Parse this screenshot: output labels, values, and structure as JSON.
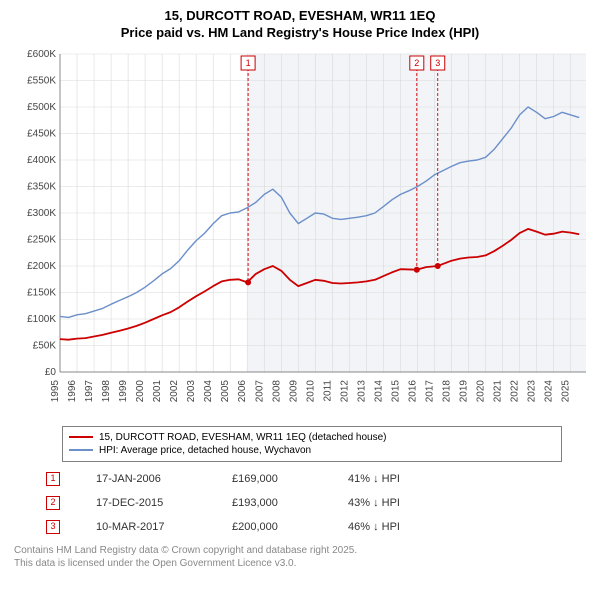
{
  "title_line1": "15, DURCOTT ROAD, EVESHAM, WR11 1EQ",
  "title_line2": "Price paid vs. HM Land Registry's House Price Index (HPI)",
  "chart": {
    "type": "line",
    "background_color": "#ffffff",
    "shaded_start_year": 2006,
    "shaded_color": "#f2f4f8",
    "x": {
      "min": 1995,
      "max": 2025.9,
      "ticks": [
        1995,
        1996,
        1997,
        1998,
        1999,
        2000,
        2001,
        2002,
        2003,
        2004,
        2005,
        2006,
        2007,
        2008,
        2009,
        2010,
        2011,
        2012,
        2013,
        2014,
        2015,
        2016,
        2017,
        2018,
        2019,
        2020,
        2021,
        2022,
        2023,
        2024,
        2025
      ],
      "tick_fontsize": 10,
      "grid_color": "#d9d9d9"
    },
    "y": {
      "min": 0,
      "max": 600000,
      "ticks": [
        0,
        50000,
        100000,
        150000,
        200000,
        250000,
        300000,
        350000,
        400000,
        450000,
        500000,
        550000,
        600000
      ],
      "tick_labels": [
        "£0",
        "£50K",
        "£100K",
        "£150K",
        "£200K",
        "£250K",
        "£300K",
        "£350K",
        "£400K",
        "£450K",
        "£500K",
        "£550K",
        "£600K"
      ],
      "tick_fontsize": 10,
      "grid_color": "#d9d9d9"
    },
    "series": [
      {
        "name": "hpi",
        "label": "HPI: Average price, detached house, Wychavon",
        "color": "#6b8fc9",
        "line_width": 1.4,
        "points": [
          [
            1995.0,
            105000
          ],
          [
            1995.5,
            103000
          ],
          [
            1996.0,
            108000
          ],
          [
            1996.5,
            110000
          ],
          [
            1997.0,
            115000
          ],
          [
            1997.5,
            120000
          ],
          [
            1998.0,
            128000
          ],
          [
            1998.5,
            135000
          ],
          [
            1999.0,
            142000
          ],
          [
            1999.5,
            150000
          ],
          [
            2000.0,
            160000
          ],
          [
            2000.5,
            172000
          ],
          [
            2001.0,
            185000
          ],
          [
            2001.5,
            195000
          ],
          [
            2002.0,
            210000
          ],
          [
            2002.5,
            230000
          ],
          [
            2003.0,
            248000
          ],
          [
            2003.5,
            262000
          ],
          [
            2004.0,
            280000
          ],
          [
            2004.5,
            295000
          ],
          [
            2005.0,
            300000
          ],
          [
            2005.5,
            302000
          ],
          [
            2006.0,
            310000
          ],
          [
            2006.5,
            320000
          ],
          [
            2007.0,
            335000
          ],
          [
            2007.5,
            345000
          ],
          [
            2008.0,
            330000
          ],
          [
            2008.5,
            300000
          ],
          [
            2009.0,
            280000
          ],
          [
            2009.5,
            290000
          ],
          [
            2010.0,
            300000
          ],
          [
            2010.5,
            298000
          ],
          [
            2011.0,
            290000
          ],
          [
            2011.5,
            288000
          ],
          [
            2012.0,
            290000
          ],
          [
            2012.5,
            292000
          ],
          [
            2013.0,
            295000
          ],
          [
            2013.5,
            300000
          ],
          [
            2014.0,
            312000
          ],
          [
            2014.5,
            325000
          ],
          [
            2015.0,
            335000
          ],
          [
            2015.5,
            342000
          ],
          [
            2016.0,
            350000
          ],
          [
            2016.5,
            360000
          ],
          [
            2017.0,
            372000
          ],
          [
            2017.5,
            380000
          ],
          [
            2018.0,
            388000
          ],
          [
            2018.5,
            395000
          ],
          [
            2019.0,
            398000
          ],
          [
            2019.5,
            400000
          ],
          [
            2020.0,
            405000
          ],
          [
            2020.5,
            420000
          ],
          [
            2021.0,
            440000
          ],
          [
            2021.5,
            460000
          ],
          [
            2022.0,
            485000
          ],
          [
            2022.5,
            500000
          ],
          [
            2023.0,
            490000
          ],
          [
            2023.5,
            478000
          ],
          [
            2024.0,
            482000
          ],
          [
            2024.5,
            490000
          ],
          [
            2025.0,
            485000
          ],
          [
            2025.5,
            480000
          ]
        ]
      },
      {
        "name": "price_paid",
        "label": "15, DURCOTT ROAD, EVESHAM, WR11 1EQ (detached house)",
        "color": "#cc0000",
        "line_width": 1.8,
        "points": [
          [
            1995.0,
            62000
          ],
          [
            1995.5,
            61000
          ],
          [
            1996.0,
            63000
          ],
          [
            1996.5,
            64000
          ],
          [
            1997.0,
            67000
          ],
          [
            1997.5,
            70000
          ],
          [
            1998.0,
            74000
          ],
          [
            1998.5,
            78000
          ],
          [
            1999.0,
            82000
          ],
          [
            1999.5,
            87000
          ],
          [
            2000.0,
            93000
          ],
          [
            2000.5,
            100000
          ],
          [
            2001.0,
            107000
          ],
          [
            2001.5,
            113000
          ],
          [
            2002.0,
            122000
          ],
          [
            2002.5,
            133000
          ],
          [
            2003.0,
            143000
          ],
          [
            2003.5,
            152000
          ],
          [
            2004.0,
            162000
          ],
          [
            2004.5,
            171000
          ],
          [
            2005.0,
            174000
          ],
          [
            2005.5,
            175000
          ],
          [
            2006.0,
            169000
          ],
          [
            2006.5,
            185000
          ],
          [
            2007.0,
            194000
          ],
          [
            2007.5,
            200000
          ],
          [
            2008.0,
            191000
          ],
          [
            2008.5,
            174000
          ],
          [
            2009.0,
            162000
          ],
          [
            2009.5,
            168000
          ],
          [
            2010.0,
            174000
          ],
          [
            2010.5,
            172000
          ],
          [
            2011.0,
            168000
          ],
          [
            2011.5,
            167000
          ],
          [
            2012.0,
            168000
          ],
          [
            2012.5,
            169000
          ],
          [
            2013.0,
            171000
          ],
          [
            2013.5,
            174000
          ],
          [
            2014.0,
            181000
          ],
          [
            2014.5,
            188000
          ],
          [
            2015.0,
            194000
          ],
          [
            2015.96,
            193000
          ],
          [
            2016.5,
            198000
          ],
          [
            2017.19,
            200000
          ],
          [
            2017.5,
            204000
          ],
          [
            2018.0,
            210000
          ],
          [
            2018.5,
            214000
          ],
          [
            2019.0,
            216000
          ],
          [
            2019.5,
            217000
          ],
          [
            2020.0,
            220000
          ],
          [
            2020.5,
            228000
          ],
          [
            2021.0,
            238000
          ],
          [
            2021.5,
            249000
          ],
          [
            2022.0,
            262000
          ],
          [
            2022.5,
            270000
          ],
          [
            2023.0,
            265000
          ],
          [
            2023.5,
            259000
          ],
          [
            2024.0,
            261000
          ],
          [
            2024.5,
            265000
          ],
          [
            2025.0,
            263000
          ],
          [
            2025.5,
            260000
          ]
        ]
      }
    ],
    "markers": [
      {
        "n": "1",
        "x": 2006.05,
        "y_line": 169000,
        "color": "#cc0000"
      },
      {
        "n": "2",
        "x": 2015.96,
        "y_line": 193000,
        "color": "#cc0000"
      },
      {
        "n": "3",
        "x": 2017.19,
        "y_line": 200000,
        "color": "#cc0000"
      }
    ]
  },
  "legend": {
    "border_color": "#808080",
    "items": [
      {
        "color": "#cc0000",
        "label": "15, DURCOTT ROAD, EVESHAM, WR11 1EQ (detached house)"
      },
      {
        "color": "#6b8fc9",
        "label": "HPI: Average price, detached house, Wychavon"
      }
    ]
  },
  "sales": [
    {
      "n": "1",
      "date": "17-JAN-2006",
      "price": "£169,000",
      "delta": "41% ↓ HPI",
      "color": "#cc0000"
    },
    {
      "n": "2",
      "date": "17-DEC-2015",
      "price": "£193,000",
      "delta": "43% ↓ HPI",
      "color": "#cc0000"
    },
    {
      "n": "3",
      "date": "10-MAR-2017",
      "price": "£200,000",
      "delta": "46% ↓ HPI",
      "color": "#cc0000"
    }
  ],
  "footer_line1": "Contains HM Land Registry data © Crown copyright and database right 2025.",
  "footer_line2": "This data is licensed under the Open Government Licence v3.0."
}
